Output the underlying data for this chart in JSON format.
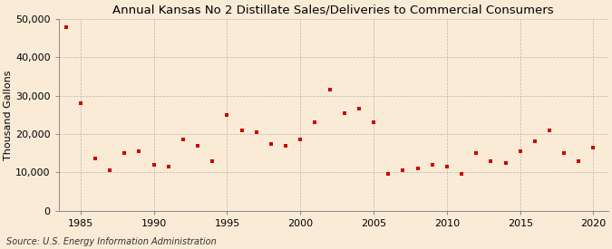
{
  "title": "Annual Kansas No 2 Distillate Sales/Deliveries to Commercial Consumers",
  "ylabel": "Thousand Gallons",
  "source": "Source: U.S. Energy Information Administration",
  "background_color": "#faebd7",
  "plot_background_color": "#faebd7",
  "dot_color": "#cc0000",
  "years": [
    1984,
    1985,
    1986,
    1987,
    1988,
    1989,
    1990,
    1991,
    1992,
    1993,
    1994,
    1995,
    1996,
    1997,
    1998,
    1999,
    2000,
    2001,
    2002,
    2003,
    2004,
    2005,
    2006,
    2007,
    2008,
    2009,
    2010,
    2011,
    2012,
    2013,
    2014,
    2015,
    2016,
    2017,
    2018,
    2019,
    2020
  ],
  "values": [
    48000,
    28000,
    13500,
    10500,
    15000,
    15500,
    12000,
    11500,
    18500,
    17000,
    13000,
    25000,
    21000,
    20500,
    17500,
    17000,
    18500,
    23000,
    31500,
    25500,
    26500,
    23000,
    9500,
    10500,
    11000,
    12000,
    11500,
    9500,
    15000,
    13000,
    12500,
    15500,
    18000,
    21000,
    15000,
    13000,
    16500
  ],
  "xlim": [
    1983.5,
    2021
  ],
  "ylim": [
    0,
    50000
  ],
  "yticks": [
    0,
    10000,
    20000,
    30000,
    40000,
    50000
  ],
  "ytick_labels": [
    "0",
    "10,000",
    "20,000",
    "30,000",
    "40,000",
    "50,000"
  ],
  "xticks": [
    1985,
    1990,
    1995,
    2000,
    2005,
    2010,
    2015,
    2020
  ],
  "title_fontsize": 9.5,
  "label_fontsize": 8,
  "tick_fontsize": 8,
  "source_fontsize": 7
}
